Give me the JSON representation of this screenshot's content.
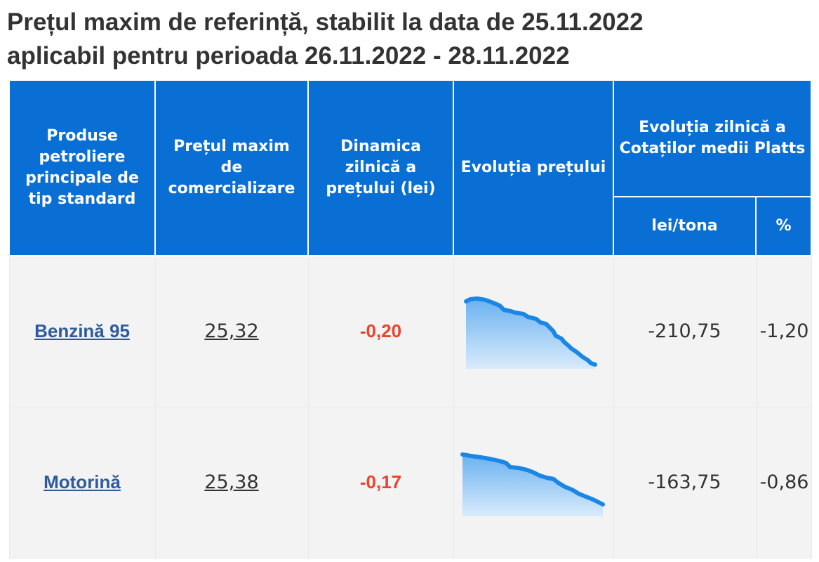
{
  "title": {
    "line1": "Prețul maxim de referință, stabilit la data de 25.11.2022",
    "line2": "aplicabil pentru perioada 26.11.2022 - 28.11.2022"
  },
  "headers": {
    "product": "Produse petroliere principale de tip standard",
    "max_price": "Prețul maxim de comercializare",
    "daily_dynamic": "Dinamica zilnică a prețului (lei)",
    "price_evolution": "Evoluția prețului",
    "platts_evolution": "Evoluția zilnică a Cotaților medii Platts",
    "platts_lei_tona": "lei/tona",
    "platts_percent": "%"
  },
  "rows": [
    {
      "product": "Benzină 95",
      "max_price": "25,32",
      "daily_dynamic": "-0,20",
      "platts_lei_tona": "-210,75",
      "platts_percent": "-1,20"
    },
    {
      "product": "Motorină",
      "max_price": "25,38",
      "daily_dynamic": "-0,17",
      "platts_lei_tona": "-163,75",
      "platts_percent": "-0,86"
    }
  ],
  "colors": {
    "header_bg": "#0a6fd4",
    "header_text": "#ffffff",
    "negative": "#e8442f",
    "link": "#2e5b9e",
    "sparkline": "#1a87e6",
    "cell_bg": "#f3f3f3"
  }
}
